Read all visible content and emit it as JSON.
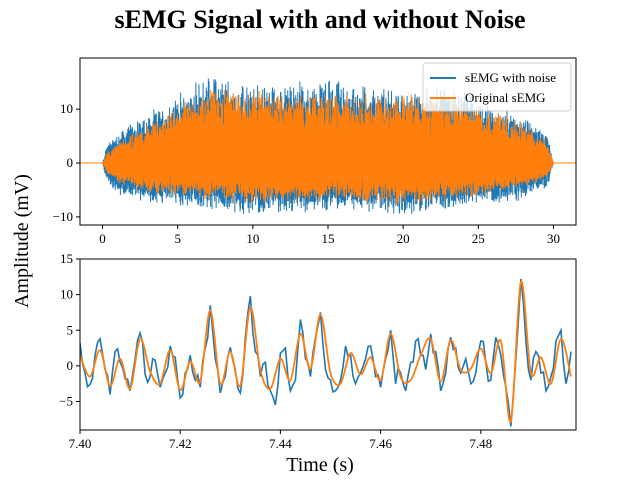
{
  "figure": {
    "title": "sEMG Signal with and without Noise",
    "ylabel": "Amplitude (mV)",
    "xlabel": "Time (s)"
  },
  "colors": {
    "noisy": "#1f77b4",
    "original": "#ff7f0e"
  },
  "chart_data": [
    {
      "type": "line",
      "xlim": [
        -1.5,
        31.5
      ],
      "ylim": [
        -11.5,
        19.5
      ],
      "x_ticks": [
        0,
        5,
        10,
        15,
        20,
        25,
        30
      ],
      "y_ticks": [
        -10,
        0,
        10
      ],
      "x_tick_labels": [
        "0",
        "5",
        "10",
        "15",
        "20",
        "25",
        "30"
      ],
      "y_tick_labels": [
        "−10",
        "0",
        "10"
      ],
      "legend": {
        "placement": "top-right",
        "entries": [
          "sEMG with noise",
          "Original sEMG"
        ]
      },
      "signal_range_s": [
        0,
        30
      ],
      "series": [
        {
          "name": "sEMG with noise",
          "envelope_x": [
            0,
            0.3,
            1,
            2,
            4,
            7,
            10,
            15,
            20,
            23,
            26,
            28,
            29.6,
            30
          ],
          "envelope_max": [
            0,
            4,
            6,
            8,
            11,
            17,
            15,
            16,
            14,
            15,
            11,
            9,
            6,
            0
          ],
          "envelope_min": [
            0,
            -4,
            -6,
            -7,
            -8,
            -9,
            -10,
            -9,
            -10,
            -9,
            -8,
            -7,
            -5,
            0
          ]
        },
        {
          "name": "Original sEMG",
          "envelope_x": [
            0,
            0.3,
            1,
            2,
            4,
            7,
            10,
            15,
            20,
            23,
            26,
            28,
            29.6,
            30
          ],
          "envelope_max": [
            0,
            2,
            4,
            6,
            9,
            15,
            14,
            13,
            13,
            13,
            10,
            8,
            4,
            0
          ],
          "envelope_min": [
            0,
            -2,
            -4,
            -5,
            -6,
            -7,
            -8,
            -7,
            -8,
            -7,
            -6,
            -5,
            -3,
            0
          ]
        }
      ]
    },
    {
      "type": "line",
      "xlim": [
        7.4,
        7.499
      ],
      "ylim": [
        -9,
        15
      ],
      "x_ticks": [
        7.4,
        7.42,
        7.44,
        7.46,
        7.48
      ],
      "y_ticks": [
        -5,
        0,
        5,
        10,
        15
      ],
      "x_tick_labels": [
        "7.40",
        "7.42",
        "7.44",
        "7.46",
        "7.48"
      ],
      "y_tick_labels": [
        "−5",
        "0",
        "5",
        "10",
        "15"
      ],
      "series": [
        {
          "name": "Original sEMG",
          "x": [
            7.4,
            7.402,
            7.404,
            7.406,
            7.408,
            7.41,
            7.412,
            7.414,
            7.416,
            7.418,
            7.42,
            7.422,
            7.424,
            7.426,
            7.428,
            7.43,
            7.432,
            7.434,
            7.436,
            7.438,
            7.44,
            7.442,
            7.444,
            7.446,
            7.448,
            7.45,
            7.452,
            7.454,
            7.456,
            7.458,
            7.46,
            7.462,
            7.464,
            7.466,
            7.468,
            7.47,
            7.472,
            7.474,
            7.476,
            7.478,
            7.48,
            7.482,
            7.484,
            7.486,
            7.488,
            7.49,
            7.492,
            7.494,
            7.496,
            7.498
          ],
          "y": [
            1.5,
            -1.5,
            2.2,
            -2.8,
            1.0,
            -3.2,
            3.8,
            -0.8,
            -2.5,
            2.2,
            -3.4,
            0.6,
            -2.2,
            7.8,
            -2.5,
            2.0,
            -2.8,
            8.2,
            -0.6,
            -3.2,
            1.0,
            -2.0,
            4.5,
            -0.4,
            7.2,
            -1.0,
            -2.5,
            1.8,
            -1.2,
            1.2,
            -2.0,
            4.5,
            -1.6,
            -2.0,
            1.5,
            3.8,
            -2.2,
            3.6,
            -0.6,
            -0.4,
            2.4,
            -1.0,
            3.5,
            -7.8,
            11.8,
            -1.0,
            1.2,
            -2.5,
            3.8,
            -1.5
          ]
        },
        {
          "name": "sEMG with noise",
          "x": [
            7.4,
            7.401,
            7.402,
            7.403,
            7.404,
            7.405,
            7.406,
            7.407,
            7.408,
            7.409,
            7.41,
            7.411,
            7.412,
            7.413,
            7.414,
            7.415,
            7.416,
            7.417,
            7.418,
            7.419,
            7.42,
            7.421,
            7.422,
            7.423,
            7.424,
            7.425,
            7.426,
            7.427,
            7.428,
            7.429,
            7.43,
            7.431,
            7.432,
            7.433,
            7.434,
            7.435,
            7.436,
            7.437,
            7.438,
            7.439,
            7.44,
            7.441,
            7.442,
            7.443,
            7.444,
            7.445,
            7.446,
            7.447,
            7.448,
            7.449,
            7.45,
            7.451,
            7.452,
            7.453,
            7.454,
            7.455,
            7.456,
            7.457,
            7.458,
            7.459,
            7.46,
            7.461,
            7.462,
            7.463,
            7.464,
            7.465,
            7.466,
            7.467,
            7.468,
            7.469,
            7.47,
            7.471,
            7.472,
            7.473,
            7.474,
            7.475,
            7.476,
            7.477,
            7.478,
            7.479,
            7.48,
            7.481,
            7.482,
            7.483,
            7.484,
            7.485,
            7.486,
            7.487,
            7.488,
            7.489,
            7.49,
            7.491,
            7.492,
            7.493,
            7.494,
            7.495,
            7.496,
            7.497,
            7.498
          ],
          "y": [
            3.2,
            -1.0,
            -2.6,
            1.5,
            3.8,
            -0.5,
            -4.0,
            2.0,
            0.5,
            -1.8,
            -3.5,
            1.0,
            4.6,
            -1.2,
            -1.5,
            0.8,
            -3.0,
            -1.0,
            2.8,
            1.2,
            -4.5,
            -1.0,
            1.5,
            -2.0,
            -3.0,
            2.5,
            8.5,
            1.0,
            -3.8,
            -1.5,
            2.6,
            -0.5,
            -3.8,
            4.0,
            9.8,
            2.0,
            -1.5,
            0.5,
            -3.5,
            -5.5,
            1.8,
            2.5,
            -3.5,
            -2.0,
            6.5,
            1.0,
            -1.5,
            4.0,
            7.5,
            -0.5,
            -2.0,
            -3.5,
            -2.0,
            2.8,
            1.5,
            -2.5,
            -1.0,
            1.0,
            2.8,
            -1.5,
            -3.0,
            1.0,
            5.0,
            -2.5,
            -1.0,
            -3.5,
            0.5,
            3.5,
            1.5,
            -0.5,
            4.5,
            2.0,
            -3.5,
            -1.0,
            4.0,
            2.5,
            -1.0,
            1.0,
            -2.5,
            -1.0,
            3.5,
            0.5,
            -2.0,
            4.0,
            1.5,
            -3.0,
            -8.5,
            1.0,
            12.2,
            3.5,
            -2.0,
            2.0,
            -1.0,
            -3.5,
            -1.5,
            3.5,
            5.0,
            -2.5,
            2.0
          ]
        }
      ]
    }
  ]
}
